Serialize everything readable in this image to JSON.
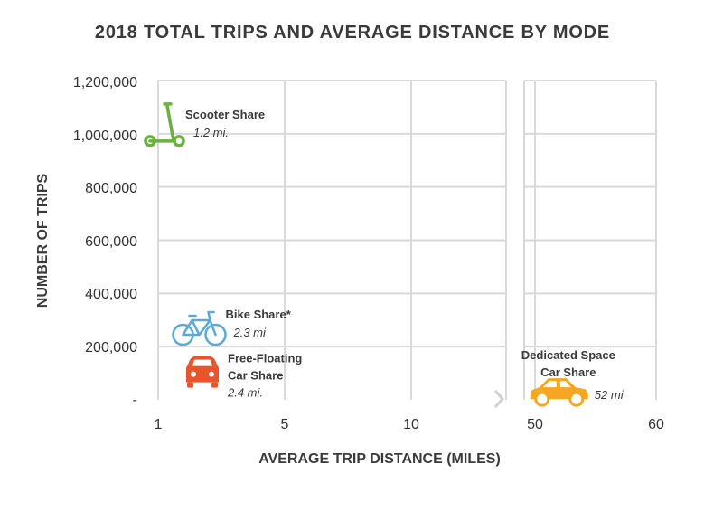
{
  "chart_data": {
    "type": "scatter",
    "title": "2018 TOTAL TRIPS AND AVERAGE DISTANCE BY MODE",
    "xlabel": "AVERAGE TRIP DISTANCE (MILES)",
    "ylabel": "NUMBER OF  TRIPS",
    "x_axis_broken": true,
    "x_ticks": [
      "1",
      "5",
      "10",
      "50",
      "60"
    ],
    "y_ticks": [
      "-",
      "200,000",
      "400,000",
      "600,000",
      "800,000",
      "1,000,000",
      "1,200,000"
    ],
    "ylim": [
      0,
      1200000
    ],
    "grid": true,
    "points": [
      {
        "name": "Scooter Share",
        "distance_label": "1.2 mi.",
        "x": 1.2,
        "y": 1000000,
        "icon": "scooter-icon",
        "color": "#6ab23e"
      },
      {
        "name": "Bike Share*",
        "distance_label": "2.3 mi",
        "x": 2.3,
        "y": 265000,
        "icon": "bicycle-icon",
        "color": "#5aa9d6"
      },
      {
        "name_line1": "Free-Floating",
        "name_line2": "Car Share",
        "distance_label": "2.4 mi.",
        "x": 2.4,
        "y": 100000,
        "icon": "car-icon",
        "color": "#e8552c"
      },
      {
        "name_line1": "Dedicated Space",
        "name_line2": "Car Share",
        "distance_label": "52 mi",
        "x": 52,
        "y": 30000,
        "icon": "car-icon",
        "color": "#f5a623"
      }
    ]
  }
}
